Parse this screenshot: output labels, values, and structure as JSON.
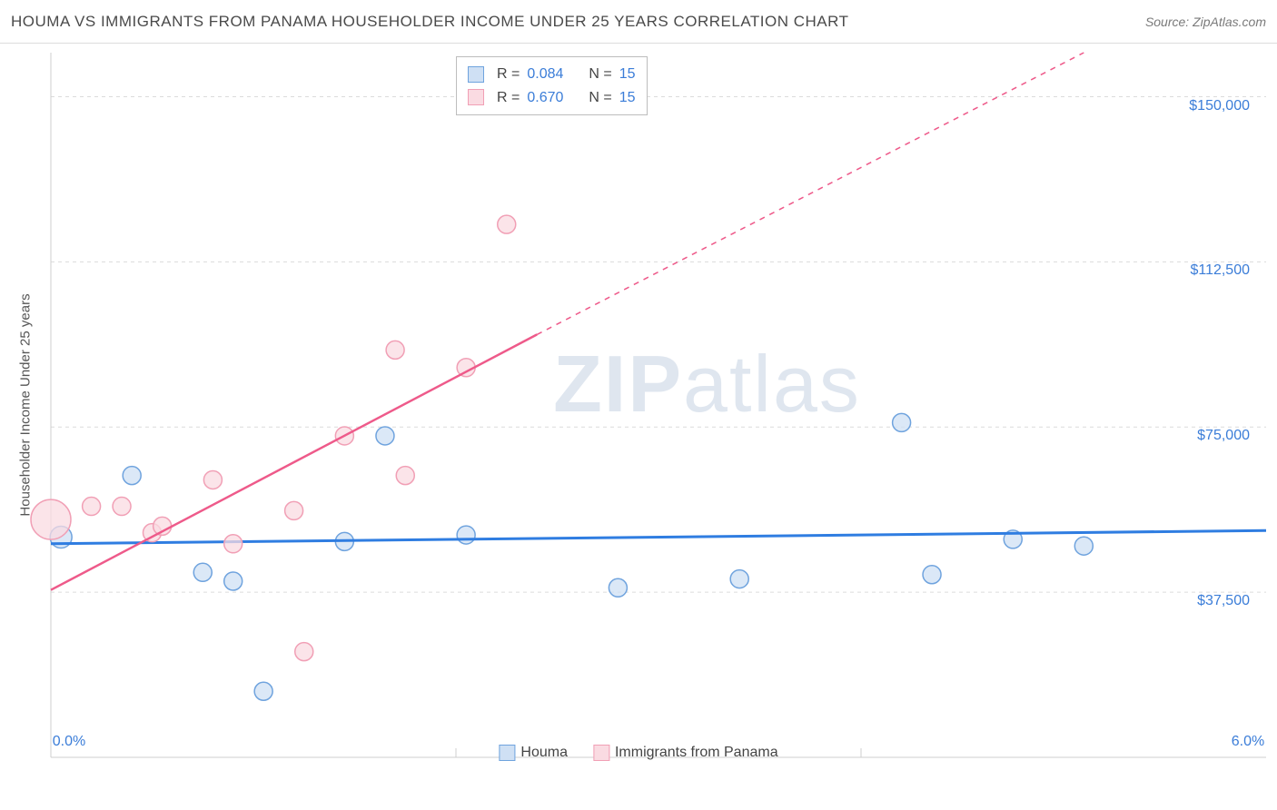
{
  "title": "HOUMA VS IMMIGRANTS FROM PANAMA HOUSEHOLDER INCOME UNDER 25 YEARS CORRELATION CHART",
  "source_label": "Source: ZipAtlas.com",
  "watermark": {
    "bold": "ZIP",
    "light": "atlas"
  },
  "chart": {
    "type": "scatter",
    "background_color": "#ffffff",
    "grid_color": "#dcdcdc",
    "axis_color": "#cfcfcf",
    "y_label": "Householder Income Under 25 years",
    "axis_label_color": "#555555",
    "axis_label_fontsize": 15,
    "tick_fontsize": 16,
    "tick_color": "#3b7dd8",
    "xlim": [
      0.0,
      6.0
    ],
    "x_ticks": [
      {
        "value": 0.0,
        "label": "0.0%"
      },
      {
        "value": 6.0,
        "label": "6.0%"
      }
    ],
    "x_minor_ticks": [
      2.0,
      4.0
    ],
    "ylim": [
      0,
      160000
    ],
    "y_ticks": [
      {
        "value": 37500,
        "label": "$37,500"
      },
      {
        "value": 75000,
        "label": "$75,000"
      },
      {
        "value": 112500,
        "label": "$112,500"
      },
      {
        "value": 150000,
        "label": "$150,000"
      }
    ],
    "series": [
      {
        "name": "Houma",
        "color_fill": "#cfe0f4",
        "color_stroke": "#6fa3de",
        "line_color": "#2f7de1",
        "line_width": 3,
        "marker_opacity": 0.75,
        "points": [
          {
            "x": 0.05,
            "y": 50000,
            "r": 12
          },
          {
            "x": 0.4,
            "y": 64000,
            "r": 10
          },
          {
            "x": 0.75,
            "y": 42000,
            "r": 10
          },
          {
            "x": 0.9,
            "y": 40000,
            "r": 10
          },
          {
            "x": 1.05,
            "y": 15000,
            "r": 10
          },
          {
            "x": 1.45,
            "y": 49000,
            "r": 10
          },
          {
            "x": 1.65,
            "y": 73000,
            "r": 10
          },
          {
            "x": 2.05,
            "y": 50500,
            "r": 10
          },
          {
            "x": 2.8,
            "y": 38500,
            "r": 10
          },
          {
            "x": 3.4,
            "y": 40500,
            "r": 10
          },
          {
            "x": 4.2,
            "y": 76000,
            "r": 10
          },
          {
            "x": 4.35,
            "y": 41500,
            "r": 10
          },
          {
            "x": 4.75,
            "y": 49500,
            "r": 10
          },
          {
            "x": 5.1,
            "y": 48000,
            "r": 10
          }
        ],
        "trend": {
          "x1": 0.0,
          "y1": 48500,
          "x2": 6.0,
          "y2": 51500,
          "dashed": false
        }
      },
      {
        "name": "Immigrants from Panama",
        "color_fill": "#fadbe2",
        "color_stroke": "#f19fb5",
        "line_color": "#ee5a8a",
        "line_width": 2.5,
        "marker_opacity": 0.75,
        "points": [
          {
            "x": 0.0,
            "y": 54000,
            "r": 22
          },
          {
            "x": 0.2,
            "y": 57000,
            "r": 10
          },
          {
            "x": 0.35,
            "y": 57000,
            "r": 10
          },
          {
            "x": 0.5,
            "y": 51000,
            "r": 10
          },
          {
            "x": 0.55,
            "y": 52500,
            "r": 10
          },
          {
            "x": 0.8,
            "y": 63000,
            "r": 10
          },
          {
            "x": 0.9,
            "y": 48500,
            "r": 10
          },
          {
            "x": 1.2,
            "y": 56000,
            "r": 10
          },
          {
            "x": 1.25,
            "y": 24000,
            "r": 10
          },
          {
            "x": 1.45,
            "y": 73000,
            "r": 10
          },
          {
            "x": 1.7,
            "y": 92500,
            "r": 10
          },
          {
            "x": 1.75,
            "y": 64000,
            "r": 10
          },
          {
            "x": 2.05,
            "y": 88500,
            "r": 10
          },
          {
            "x": 2.25,
            "y": 121000,
            "r": 10
          }
        ],
        "trend": {
          "x1": 0.0,
          "y1": 38000,
          "x2": 2.4,
          "y2": 96000,
          "dashed": false
        },
        "trend_ext": {
          "x1": 2.4,
          "y1": 96000,
          "x2": 5.1,
          "y2": 160000,
          "dashed": true
        }
      }
    ],
    "bottom_legend": [
      {
        "label": "Houma",
        "fill": "#cfe0f4",
        "stroke": "#6fa3de"
      },
      {
        "label": "Immigrants from Panama",
        "fill": "#fadbe2",
        "stroke": "#f19fb5"
      }
    ],
    "top_legend": {
      "rows": [
        {
          "fill": "#cfe0f4",
          "stroke": "#6fa3de",
          "r_label": "R =",
          "r_val": "0.084",
          "n_label": "N =",
          "n_val": "15"
        },
        {
          "fill": "#fadbe2",
          "stroke": "#f19fb5",
          "r_label": "R =",
          "r_val": "0.670",
          "n_label": "N =",
          "n_val": "15"
        }
      ]
    }
  }
}
